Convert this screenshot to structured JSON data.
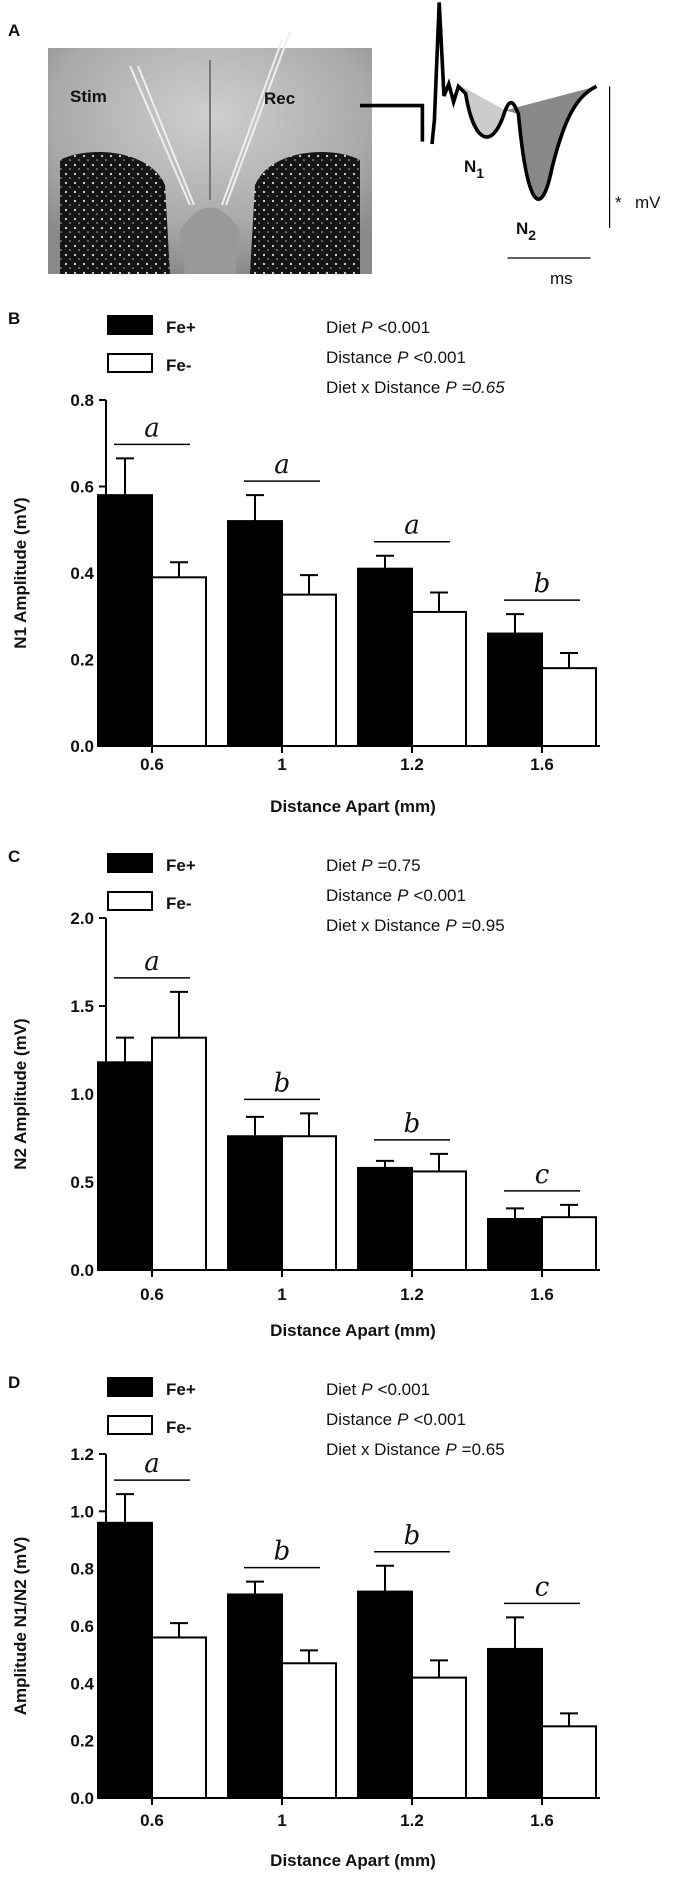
{
  "figure_a": {
    "label": "A",
    "stim": "Stim",
    "rec": "Rec",
    "n1": {
      "letter": "N",
      "sub": "1"
    },
    "n2": {
      "letter": "N",
      "sub": "2"
    },
    "scale_y": {
      "star": "*",
      "unit": "mV"
    },
    "scale_x": "ms"
  },
  "chart_data": [
    {
      "type": "bar",
      "panel_label": "B",
      "categories": [
        "0.6",
        "1",
        "1.2",
        "1.6"
      ],
      "series": [
        {
          "name": "Fe+",
          "color": "#000000",
          "values": [
            0.58,
            0.52,
            0.41,
            0.26
          ],
          "errors": [
            0.085,
            0.06,
            0.03,
            0.045
          ]
        },
        {
          "name": "Fe-",
          "color": "#ffffff",
          "values": [
            0.39,
            0.35,
            0.31,
            0.18
          ],
          "errors": [
            0.035,
            0.045,
            0.045,
            0.035
          ]
        }
      ],
      "significance": [
        "a",
        "a",
        "a",
        "b"
      ],
      "stats": [
        {
          "label": "Diet",
          "p": "P",
          "value": "<0.001",
          "value_italic": false
        },
        {
          "label": "Distance",
          "p": "P",
          "value": "<0.001",
          "value_italic": false
        },
        {
          "label": "Diet x Distance",
          "p": "P",
          "value": "=0.65",
          "value_italic": true
        }
      ],
      "ylim": [
        0,
        0.8
      ],
      "yticks": [
        {
          "value": 0,
          "label": "0.0"
        },
        0.2,
        0.4,
        0.6,
        0.8
      ],
      "ylabel": "N1 Amplitude (mV)",
      "xlabel": "Distance Apart (mm)"
    },
    {
      "type": "bar",
      "panel_label": "C",
      "categories": [
        "0.6",
        "1",
        "1.2",
        "1.6"
      ],
      "series": [
        {
          "name": "Fe+",
          "color": "#000000",
          "values": [
            1.18,
            0.76,
            0.58,
            0.29
          ],
          "errors": [
            0.14,
            0.11,
            0.04,
            0.06
          ]
        },
        {
          "name": "Fe-",
          "color": "#ffffff",
          "values": [
            1.32,
            0.76,
            0.56,
            0.3
          ],
          "errors": [
            0.26,
            0.13,
            0.1,
            0.07
          ]
        }
      ],
      "significance": [
        "a",
        "b",
        "b",
        "c"
      ],
      "stats": [
        {
          "label": "Diet",
          "p": "P",
          "value": "=0.75",
          "value_italic": false
        },
        {
          "label": "Distance",
          "p": "P",
          "value": "<0.001",
          "value_italic": false
        },
        {
          "label": "Diet x Distance",
          "p": "P",
          "value": "=0.95",
          "value_italic": false
        }
      ],
      "ylim": [
        0,
        2
      ],
      "yticks": [
        {
          "value": 0,
          "label": "0.0"
        },
        0.5,
        {
          "value": 1,
          "label": "1.0"
        },
        1.5,
        {
          "value": 2,
          "label": "2.0"
        }
      ],
      "ylabel": "N2 Amplitude (mV)",
      "xlabel": "Distance Apart (mm)"
    },
    {
      "type": "bar",
      "panel_label": "D",
      "categories": [
        "0.6",
        "1",
        "1.2",
        "1.6"
      ],
      "series": [
        {
          "name": "Fe+",
          "color": "#000000",
          "values": [
            0.96,
            0.71,
            0.72,
            0.52
          ],
          "errors": [
            0.1,
            0.045,
            0.09,
            0.11
          ]
        },
        {
          "name": "Fe-",
          "color": "#ffffff",
          "values": [
            0.56,
            0.47,
            0.42,
            0.25
          ],
          "errors": [
            0.05,
            0.045,
            0.06,
            0.045
          ]
        }
      ],
      "significance": [
        "a",
        "b",
        "b",
        "c"
      ],
      "stats": [
        {
          "label": "Diet",
          "p": "P",
          "value": "<0.001",
          "value_italic": false
        },
        {
          "label": "Distance",
          "p": "P",
          "value": "<0.001",
          "value_italic": false
        },
        {
          "label": "Diet x Distance",
          "p": "P",
          "value": "=0.65",
          "value_italic": false
        }
      ],
      "ylim": [
        0,
        1.2
      ],
      "yticks": [
        {
          "value": 0,
          "label": "0.0"
        },
        0.2,
        0.4,
        0.6,
        0.8,
        {
          "value": 1,
          "label": "1.0"
        },
        1.2
      ],
      "ylabel": "Amplitude N1/N2 (mV)",
      "xlabel": "Distance Apart (mm)"
    }
  ]
}
